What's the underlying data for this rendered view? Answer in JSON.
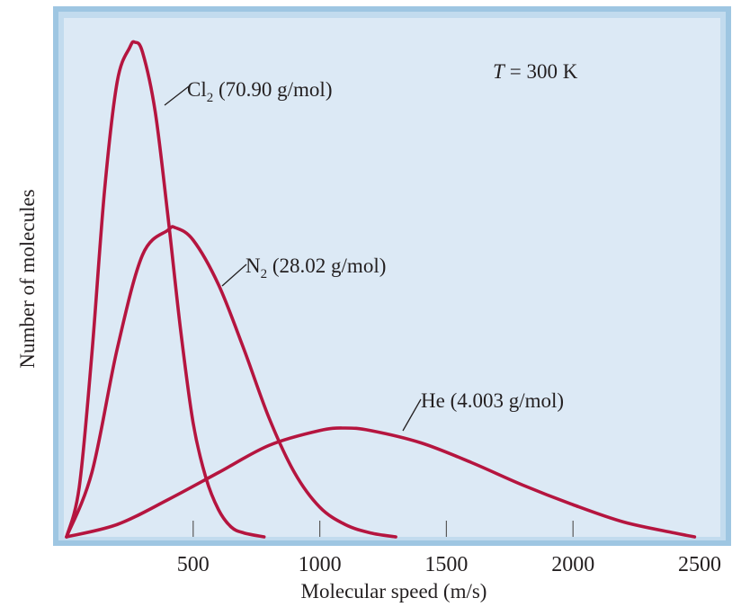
{
  "colors": {
    "plot_bg": "#dce9f5",
    "frame_outer": "#9ec6e2",
    "frame_inner": "#c2dbee",
    "curve": "#b5153f",
    "text": "#231f20"
  },
  "chart_data": {
    "type": "line",
    "title": "",
    "annotation": {
      "T_label": "T",
      "T_value": "= 300 K"
    },
    "xlabel": "Molecular speed (m/s)",
    "ylabel": "Number of molecules",
    "xlim": [
      0,
      2500
    ],
    "ylim": [
      0,
      1
    ],
    "x_ticks": [
      500,
      1000,
      1500,
      2000,
      2500
    ],
    "x_tick_labels": [
      "500",
      "1000",
      "1500",
      "2000",
      "2500"
    ],
    "grid": false,
    "series": [
      {
        "name": "Cl₂ (70.90 g/mol)",
        "label_main": "Cl",
        "label_sub": "2",
        "label_rest": " (70.90 g/mol)",
        "x": [
          0,
          50,
          100,
          150,
          200,
          250,
          270,
          300,
          350,
          400,
          450,
          500,
          550,
          600,
          650,
          700,
          780
        ],
        "values": [
          0,
          0.1,
          0.37,
          0.7,
          0.92,
          0.99,
          1.0,
          0.98,
          0.86,
          0.65,
          0.42,
          0.23,
          0.12,
          0.055,
          0.02,
          0.008,
          0
        ]
      },
      {
        "name": "N₂ (28.02 g/mol)",
        "label_main": "N",
        "label_sub": "2",
        "label_rest": " (28.02 g/mol)",
        "x": [
          0,
          100,
          200,
          300,
          400,
          430,
          500,
          600,
          700,
          800,
          900,
          1000,
          1100,
          1200,
          1300
        ],
        "values": [
          0,
          0.13,
          0.38,
          0.57,
          0.62,
          0.625,
          0.6,
          0.51,
          0.38,
          0.24,
          0.13,
          0.06,
          0.025,
          0.008,
          0
        ]
      },
      {
        "name": "He (4.003 g/mol)",
        "label_main": "He",
        "label_sub": "",
        "label_rest": " (4.003 g/mol)",
        "x": [
          0,
          200,
          400,
          600,
          800,
          1000,
          1100,
          1200,
          1400,
          1600,
          1800,
          2000,
          2200,
          2400,
          2480
        ],
        "values": [
          0,
          0.025,
          0.075,
          0.13,
          0.185,
          0.215,
          0.22,
          0.215,
          0.19,
          0.15,
          0.105,
          0.065,
          0.03,
          0.008,
          0
        ]
      }
    ]
  }
}
